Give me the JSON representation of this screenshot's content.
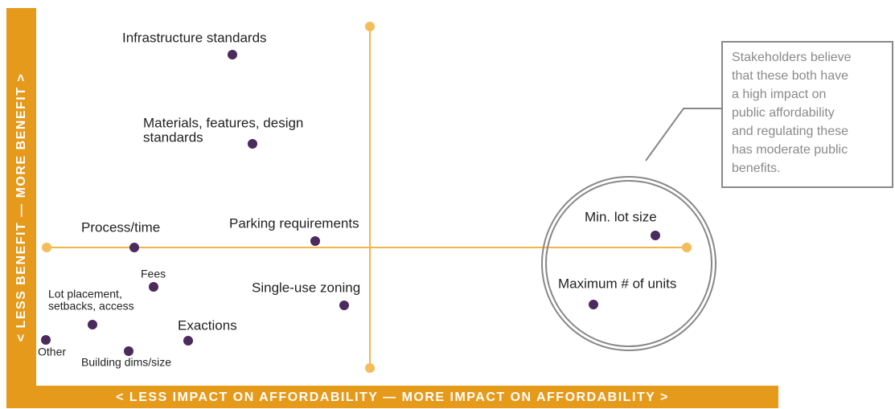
{
  "diagram": {
    "y_axis_label": "< LESS BENEFIT — MORE BENEFIT >",
    "x_axis_label": "< LESS IMPACT ON AFFORDABILITY — MORE IMPACT ON AFFORDABILITY >",
    "nodes": [
      {
        "label": [
          "Infrastructure standards"
        ]
      },
      {
        "label": [
          "Materials, features, design",
          "standards"
        ]
      },
      {
        "label": [
          "Process/time"
        ]
      },
      {
        "label": [
          "Parking requirements"
        ]
      },
      {
        "label": [
          "Fees"
        ]
      },
      {
        "label": [
          "Lot placement,",
          "setbacks, access"
        ]
      },
      {
        "label": [
          "Single-use zoning"
        ]
      },
      {
        "label": [
          "Exactions"
        ]
      },
      {
        "label": [
          "Other"
        ]
      },
      {
        "label": [
          "Building dims/size"
        ]
      },
      {
        "label": [
          "Min. lot size"
        ]
      },
      {
        "label": [
          "Maximum # of units"
        ]
      }
    ],
    "callout": [
      "Stakeholders believe",
      "that these both have",
      "a high impact on",
      "public affordability",
      "and regulating these",
      "has moderate public",
      "benefits."
    ]
  }
}
